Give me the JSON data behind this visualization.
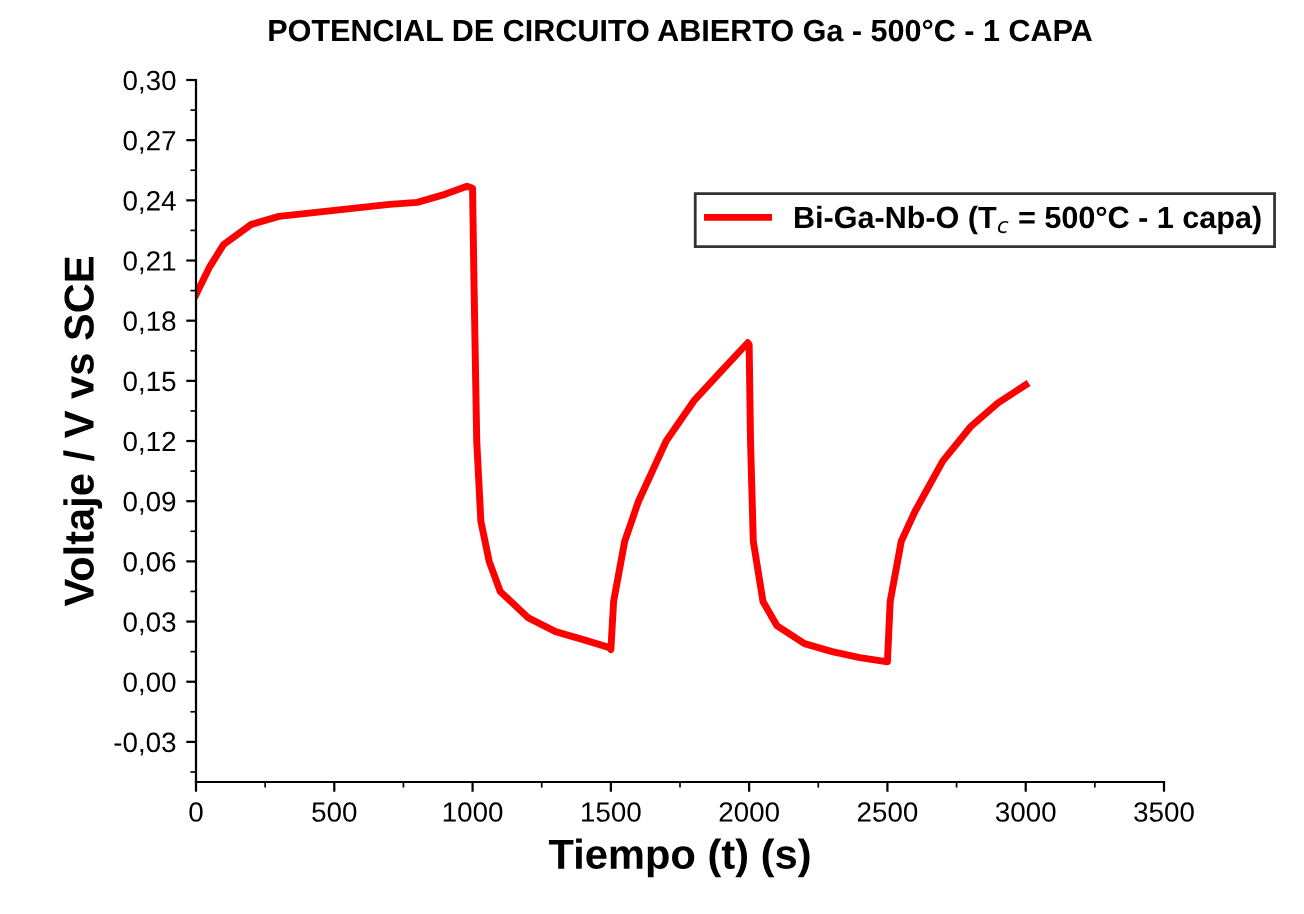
{
  "chart_data": {
    "type": "line",
    "title": "POTENCIAL DE CIRCUITO ABIERTO Ga - 500°C - 1 CAPA",
    "xlabel": "Tiempo (t) (s)",
    "ylabel": "Voltaje / V vs SCE",
    "series": [
      {
        "name": "Bi-Ga-Nb-O (T$_{c}$ = 500°C - 1 capa)",
        "color": "#ff0000",
        "x": [
          0,
          50,
          100,
          200,
          300,
          500,
          700,
          800,
          900,
          980,
          1000,
          1005,
          1015,
          1030,
          1060,
          1100,
          1200,
          1300,
          1400,
          1495,
          1500,
          1510,
          1550,
          1600,
          1700,
          1800,
          1900,
          1995,
          2000,
          2005,
          2015,
          2050,
          2100,
          2200,
          2300,
          2400,
          2495,
          2500,
          2510,
          2550,
          2600,
          2700,
          2800,
          2900,
          3000
        ],
        "values": [
          0.193,
          0.207,
          0.218,
          0.228,
          0.232,
          0.235,
          0.238,
          0.239,
          0.243,
          0.247,
          0.246,
          0.2,
          0.12,
          0.08,
          0.06,
          0.045,
          0.032,
          0.025,
          0.021,
          0.017,
          0.016,
          0.04,
          0.07,
          0.09,
          0.12,
          0.14,
          0.155,
          0.169,
          0.168,
          0.12,
          0.07,
          0.04,
          0.028,
          0.019,
          0.015,
          0.012,
          0.01,
          0.01,
          0.04,
          0.07,
          0.085,
          0.11,
          0.127,
          0.139,
          0.148
        ]
      }
    ],
    "xlim": [
      0,
      3500
    ],
    "xticks": [
      0,
      500,
      1000,
      1500,
      2000,
      2500,
      3000,
      3500
    ],
    "ylim": [
      -0.05,
      0.3
    ],
    "yticks": [
      {
        "value": -0.03,
        "label": "-0,03"
      },
      {
        "value": 0,
        "label": "0,00"
      },
      {
        "value": 0.03,
        "label": "0,03"
      },
      {
        "value": 0.06,
        "label": "0,06"
      },
      {
        "value": 0.09,
        "label": "0,09"
      },
      {
        "value": 0.12,
        "label": "0,12"
      },
      {
        "value": 0.15,
        "label": "0,15"
      },
      {
        "value": 0.18,
        "label": "0,18"
      },
      {
        "value": 0.21,
        "label": "0,21"
      },
      {
        "value": 0.24,
        "label": "0,24"
      },
      {
        "value": 0.27,
        "label": "0,27"
      },
      {
        "value": 0.3,
        "label": "0,30"
      }
    ],
    "grid": false,
    "legend": "top right",
    "marker": "none",
    "line_style": "solid"
  }
}
